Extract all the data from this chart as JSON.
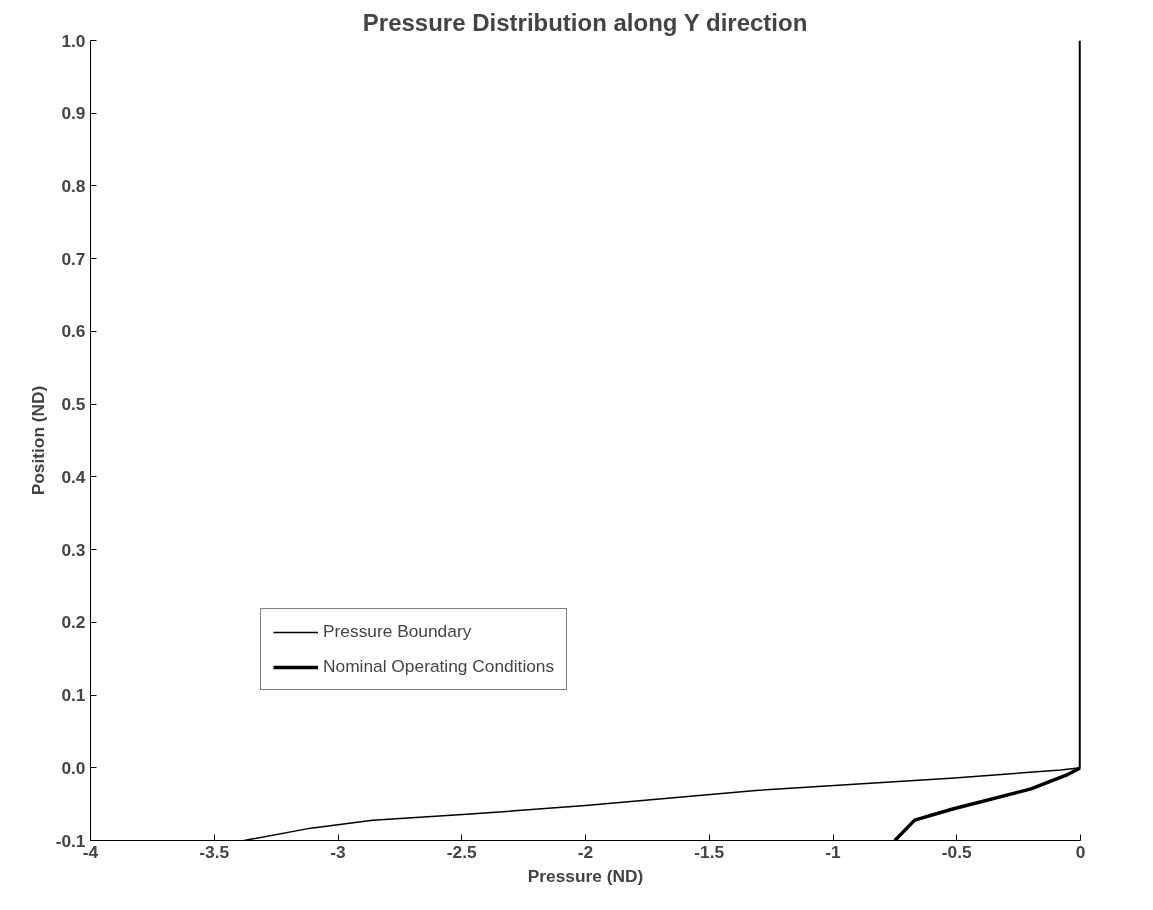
{
  "chart_data": {
    "type": "line",
    "title": "Pressure Distribution along Y direction",
    "xlabel": "Pressure (ND)",
    "ylabel": "Position (ND)",
    "series": [
      {
        "name": "Pressure Boundary",
        "color": "#000000",
        "x": [
          -3.38,
          -3.11,
          -2.86,
          -2.48,
          -2.0,
          -1.3,
          -0.51,
          -0.08,
          0,
          0
        ],
        "values": [
          -0.1,
          -0.083,
          -0.072,
          -0.064,
          -0.052,
          -0.031,
          -0.014,
          -0.003,
          0,
          1.0
        ]
      },
      {
        "name": "Nominal Operating Conditions",
        "color": "#000000",
        "x": [
          -0.75,
          -0.67,
          -0.52,
          -0.2,
          -0.05,
          0,
          0
        ],
        "values": [
          -0.1,
          -0.072,
          -0.057,
          -0.029,
          -0.009,
          0,
          1.0
        ]
      }
    ],
    "xlim": [
      -4,
      0
    ],
    "ylim": [
      -0.1,
      1.0
    ],
    "xticks": [
      -4,
      -3.5,
      -3,
      -2.5,
      -2,
      -1.5,
      -1,
      -0.5,
      0
    ],
    "yticks": [
      {
        "value": -0.1,
        "label": "-0.1"
      },
      {
        "value": 0,
        "label": "0.0"
      },
      0.1,
      0.2,
      0.3,
      0.4,
      0.5,
      0.6,
      0.7,
      0.8,
      0.9,
      {
        "value": 1.0,
        "label": "1.0"
      }
    ],
    "grid": false,
    "legend": "bottom left",
    "marker": "none",
    "line_style": "solid"
  }
}
